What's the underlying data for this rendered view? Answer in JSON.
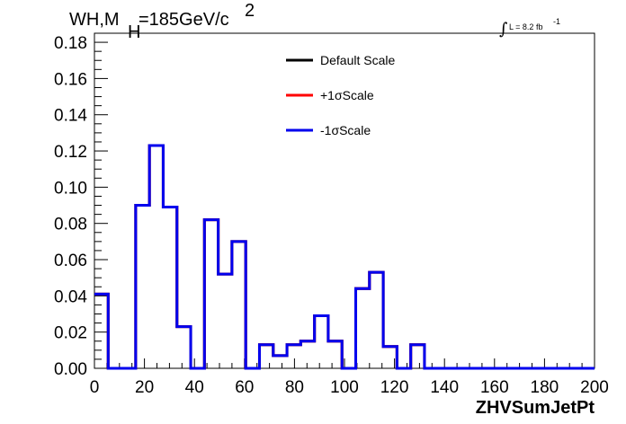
{
  "chart_data": {
    "type": "line",
    "title": {
      "main": "WH,M",
      "sub": "H",
      "rest": "=185GeV/c",
      "sup": "2"
    },
    "lumi_label": {
      "integral": "∫",
      "text": "L = 8.2 fb",
      "sup": "-1"
    },
    "xlabel": "ZHVSumJetPt",
    "ylabel": "",
    "xlim": [
      0,
      200
    ],
    "ylim": [
      0,
      0.185
    ],
    "x_ticks": [
      0,
      20,
      40,
      60,
      80,
      100,
      120,
      140,
      160,
      180,
      200
    ],
    "y_ticks": [
      "0.00",
      "0.02",
      "0.04",
      "0.06",
      "0.08",
      "0.10",
      "0.12",
      "0.14",
      "0.16",
      "0.18"
    ],
    "bin_width": 5.5,
    "bin_start": 0,
    "series": [
      {
        "name": "Default Scale",
        "color": "#000000",
        "values": [
          0.041,
          0,
          0,
          0.09,
          0.123,
          0.089,
          0.023,
          0,
          0.082,
          0.052,
          0.07,
          0,
          0.013,
          0.007,
          0.013,
          0.015,
          0.029,
          0.015,
          0,
          0.044,
          0.053,
          0.012,
          0,
          0.013,
          0,
          0,
          0,
          0,
          0,
          0,
          0,
          0,
          0,
          0,
          0,
          0,
          0,
          0,
          0,
          0,
          0,
          0,
          0,
          0,
          0,
          0,
          0,
          0,
          0,
          0,
          0,
          0,
          0,
          0,
          0,
          0,
          0,
          0,
          0,
          0
        ]
      },
      {
        "name": "+1σScale",
        "color": "#ff0000",
        "values": []
      },
      {
        "name": "-1σScale",
        "color": "#0000ee",
        "values": []
      }
    ],
    "legend_position": "top-center"
  }
}
